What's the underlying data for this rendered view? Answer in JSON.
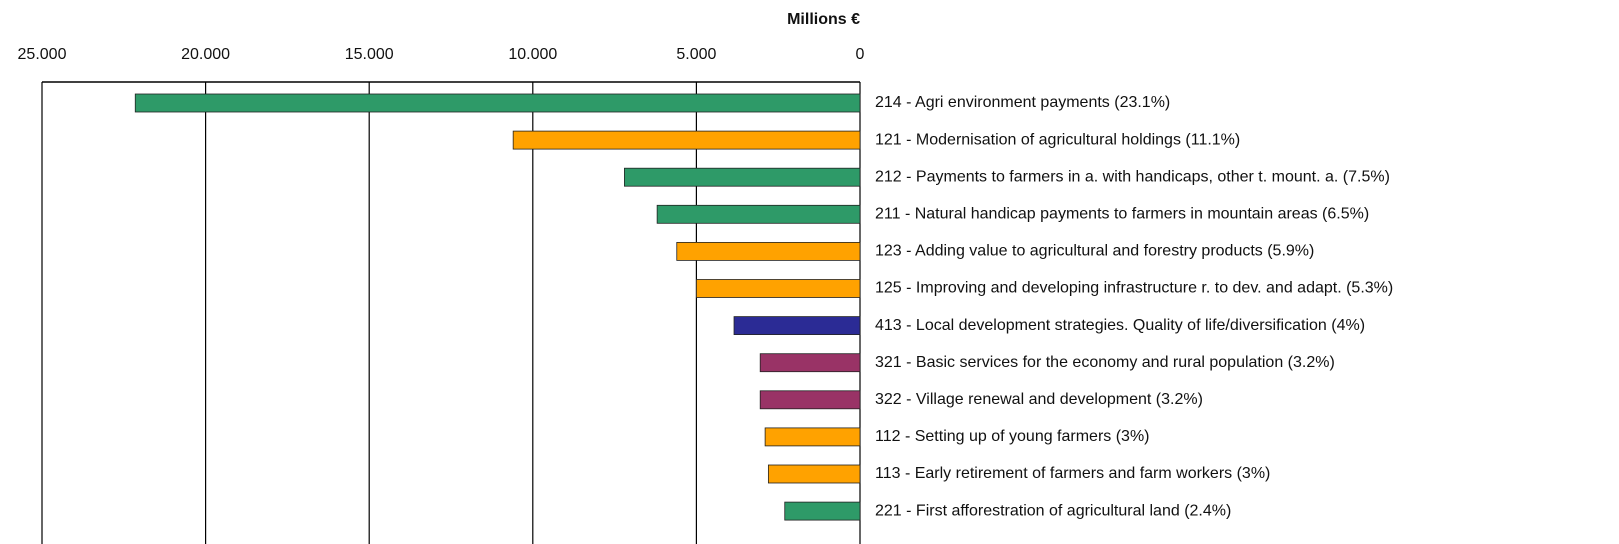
{
  "chart_data": {
    "type": "bar",
    "orientation": "horizontal",
    "x_reversed": true,
    "axis_position": "top",
    "xlabel": "Millions €",
    "categories": [
      "214 - Agri environment payments (23.1%)",
      "121 - Modernisation of agricultural holdings (11.1%)",
      "212 - Payments to farmers in a. with handicaps, other t. mount. a. (7.5%)",
      "211 - Natural handicap payments to farmers in mountain areas (6.5%)",
      "123 - Adding value to agricultural and forestry products (5.9%)",
      "125 - Improving and developing infrastructure r. to dev. and adapt. (5.3%)",
      "413 - Local development strategies. Quality of life/diversification (4%)",
      "321 - Basic services for the economy and rural population (3.2%)",
      "322 - Village renewal and development (3.2%)",
      "112 - Setting up of young farmers (3%)",
      "113 - Early retirement of farmers and farm workers (3%)",
      "221 - First afforestration of agricultural land (2.4%)"
    ],
    "values": [
      22150,
      10600,
      7200,
      6200,
      5600,
      5000,
      3850,
      3050,
      3050,
      2900,
      2800,
      2300
    ],
    "colors": [
      "#2e9a68",
      "#ffa200",
      "#2e9a68",
      "#2e9a68",
      "#ffa200",
      "#ffa200",
      "#2b2b95",
      "#993366",
      "#993366",
      "#ffa200",
      "#ffa200",
      "#2e9a68"
    ],
    "xlim": [
      0,
      25000
    ],
    "xticks": [
      {
        "value": 25000,
        "label": "25.000"
      },
      {
        "value": 20000,
        "label": "20.000"
      },
      {
        "value": 15000,
        "label": "15.000"
      },
      {
        "value": 10000,
        "label": "10.000"
      },
      {
        "value": 5000,
        "label": "5.000"
      },
      0
    ],
    "grid": true
  }
}
